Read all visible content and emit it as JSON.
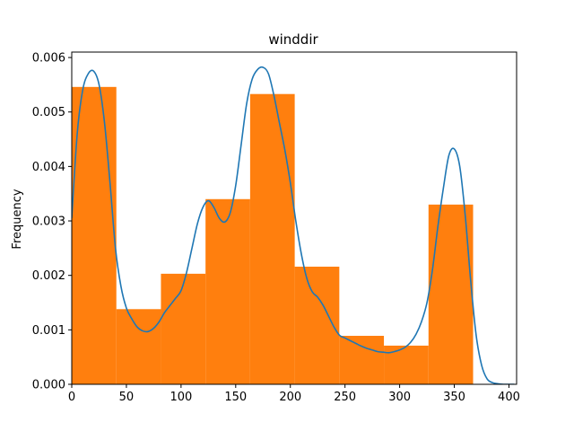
{
  "chart_data": {
    "type": "bar",
    "title": "winddir",
    "xlabel": "",
    "ylabel": "Frequency",
    "xlim": [
      0,
      407
    ],
    "ylim": [
      0,
      0.0061
    ],
    "xticks": [
      0,
      50,
      100,
      150,
      200,
      250,
      300,
      350,
      400
    ],
    "yticks": [
      0.0,
      0.001,
      0.002,
      0.003,
      0.004,
      0.005,
      0.006
    ],
    "ytick_labels": [
      "0.000",
      "0.001",
      "0.002",
      "0.003",
      "0.004",
      "0.005",
      "0.006"
    ],
    "grid": false,
    "histogram": {
      "bin_edges": [
        0,
        40.8,
        81.6,
        122.4,
        163.2,
        204,
        244.8,
        285.6,
        326.4,
        367.2
      ],
      "values": [
        0.00546,
        0.00138,
        0.00203,
        0.0034,
        0.00533,
        0.00216,
        0.00089,
        0.00071,
        0.0033
      ],
      "color": "#ff7f0e"
    },
    "density_curve": {
      "color": "#1f77b4",
      "x": [
        0,
        5,
        10,
        15,
        20,
        25,
        30,
        35,
        40,
        45,
        50,
        55,
        60,
        65,
        70,
        75,
        80,
        85,
        90,
        95,
        100,
        105,
        110,
        115,
        120,
        125,
        130,
        135,
        140,
        145,
        150,
        155,
        160,
        165,
        170,
        175,
        180,
        185,
        190,
        195,
        200,
        205,
        210,
        215,
        220,
        225,
        230,
        235,
        240,
        245,
        250,
        255,
        260,
        265,
        270,
        275,
        280,
        285,
        290,
        295,
        300,
        305,
        310,
        315,
        320,
        325,
        330,
        335,
        340,
        345,
        350,
        355,
        360,
        365,
        370,
        375,
        380,
        385,
        390,
        395,
        400,
        405
      ],
      "y": [
        0.00305,
        0.0046,
        0.0054,
        0.0057,
        0.00575,
        0.0055,
        0.0048,
        0.0037,
        0.0025,
        0.0018,
        0.0014,
        0.0012,
        0.00105,
        0.00098,
        0.00097,
        0.00103,
        0.00115,
        0.00132,
        0.00145,
        0.00158,
        0.00172,
        0.00205,
        0.0025,
        0.00295,
        0.00325,
        0.00337,
        0.00325,
        0.00305,
        0.00298,
        0.00315,
        0.00365,
        0.0044,
        0.00515,
        0.0056,
        0.00578,
        0.00582,
        0.0057,
        0.0053,
        0.0048,
        0.0043,
        0.0037,
        0.003,
        0.0024,
        0.00195,
        0.0017,
        0.0016,
        0.00145,
        0.00125,
        0.00105,
        0.0009,
        0.00085,
        0.0008,
        0.00075,
        0.0007,
        0.00066,
        0.00063,
        0.0006,
        0.00059,
        0.00058,
        0.0006,
        0.00063,
        0.00068,
        0.00077,
        0.00092,
        0.00115,
        0.0015,
        0.0021,
        0.0029,
        0.0036,
        0.0042,
        0.00432,
        0.004,
        0.0031,
        0.0019,
        0.0009,
        0.00035,
        0.0001,
        3e-05,
        1e-05,
        0.0,
        0.0,
        0.0
      ]
    }
  }
}
